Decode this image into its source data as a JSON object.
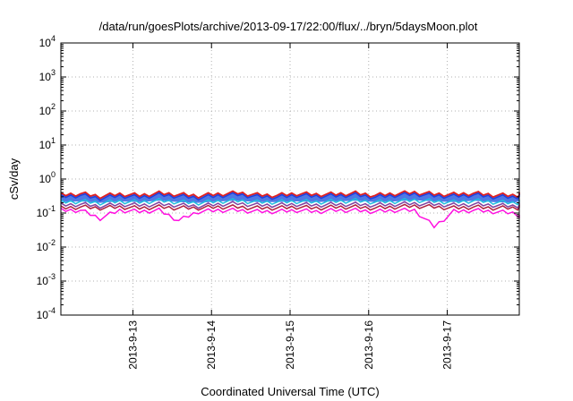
{
  "chart_data": {
    "type": "area",
    "title": "/data/run/goesPlots/archive/2013-09-17/22:00/flux/../bryn/5daysMoon.plot",
    "xlabel": "Coordinated Universal Time (UTC)",
    "ylabel": "cSv/day",
    "y_scale": "log",
    "ylim": [
      0.0001,
      10000
    ],
    "xlim": [
      "2013-09-12 02:00",
      "2013-09-17 22:00"
    ],
    "grid": true,
    "legend": "none",
    "x_tick_labels": [
      "2013-9-13",
      "2013-9-14",
      "2013-9-15",
      "2013-9-16",
      "2013-9-17"
    ],
    "x_ticks": [
      "2013-09-13 00:00",
      "2013-09-14 00:00",
      "2013-09-15 00:00",
      "2013-09-16 00:00",
      "2013-09-17 00:00"
    ],
    "y_ticks": [
      {
        "value": 0.0001,
        "base": "10",
        "exp": "-4"
      },
      {
        "value": 0.001,
        "base": "10",
        "exp": "-3"
      },
      {
        "value": 0.01,
        "base": "10",
        "exp": "-2"
      },
      {
        "value": 0.1,
        "base": "10",
        "exp": "-1"
      },
      {
        "value": 1,
        "base": "10",
        "exp": "0"
      },
      {
        "value": 10,
        "base": "10",
        "exp": "1"
      },
      {
        "value": 100,
        "base": "10",
        "exp": "2"
      },
      {
        "value": 1000,
        "base": "10",
        "exp": "3"
      },
      {
        "value": 10000,
        "base": "10",
        "exp": "4"
      }
    ],
    "series": [
      {
        "color": "#e02020",
        "values_start": "2013-09-12 02:00",
        "values_step_hours": 6,
        "values": [
          0.34,
          0.37,
          0.31,
          0.36,
          0.33,
          0.38,
          0.35,
          0.32,
          0.36,
          0.39,
          0.34,
          0.33,
          0.37,
          0.35,
          0.36,
          0.38,
          0.33,
          0.37,
          0.4,
          0.36,
          0.35,
          0.38,
          0.34,
          0.33,
          0.36
        ]
      },
      {
        "color": "#2040e0",
        "values_start": "2013-09-12 02:00",
        "values_step_hours": 6,
        "values": [
          0.3,
          0.33,
          0.27,
          0.32,
          0.29,
          0.34,
          0.31,
          0.28,
          0.32,
          0.35,
          0.3,
          0.29,
          0.33,
          0.31,
          0.32,
          0.34,
          0.29,
          0.33,
          0.36,
          0.32,
          0.31,
          0.34,
          0.3,
          0.29,
          0.32
        ]
      },
      {
        "color": "#20c0e0",
        "values_start": "2013-09-12 02:00",
        "values_step_hours": 6,
        "values": [
          0.21,
          0.22,
          0.2,
          0.22,
          0.21,
          0.23,
          0.21,
          0.2,
          0.22,
          0.23,
          0.21,
          0.21,
          0.22,
          0.21,
          0.22,
          0.23,
          0.21,
          0.22,
          0.24,
          0.22,
          0.21,
          0.23,
          0.21,
          0.2,
          0.22
        ]
      },
      {
        "color": "#8040a0",
        "values_start": "2013-09-12 02:00",
        "values_step_hours": 6,
        "values": [
          0.17,
          0.18,
          0.16,
          0.18,
          0.17,
          0.18,
          0.17,
          0.16,
          0.18,
          0.19,
          0.17,
          0.17,
          0.18,
          0.17,
          0.18,
          0.18,
          0.17,
          0.18,
          0.19,
          0.18,
          0.17,
          0.18,
          0.17,
          0.16,
          0.18
        ]
      },
      {
        "color": "#b02040",
        "values_start": "2013-09-12 02:00",
        "values_step_hours": 6,
        "values": [
          0.14,
          0.15,
          0.14,
          0.15,
          0.14,
          0.15,
          0.14,
          0.14,
          0.15,
          0.15,
          0.14,
          0.14,
          0.15,
          0.14,
          0.15,
          0.15,
          0.14,
          0.15,
          0.16,
          0.15,
          0.14,
          0.15,
          0.14,
          0.14,
          0.15
        ]
      },
      {
        "color": "#ff10e0",
        "values_start": "2013-09-12 02:00",
        "values_step_hours": 6,
        "values": [
          0.12,
          0.12,
          0.07,
          0.12,
          0.11,
          0.12,
          0.06,
          0.11,
          0.12,
          0.12,
          0.11,
          0.11,
          0.12,
          0.11,
          0.12,
          0.12,
          0.11,
          0.12,
          0.12,
          0.04,
          0.11,
          0.12,
          0.11,
          0.1,
          0.07
        ]
      }
    ]
  }
}
